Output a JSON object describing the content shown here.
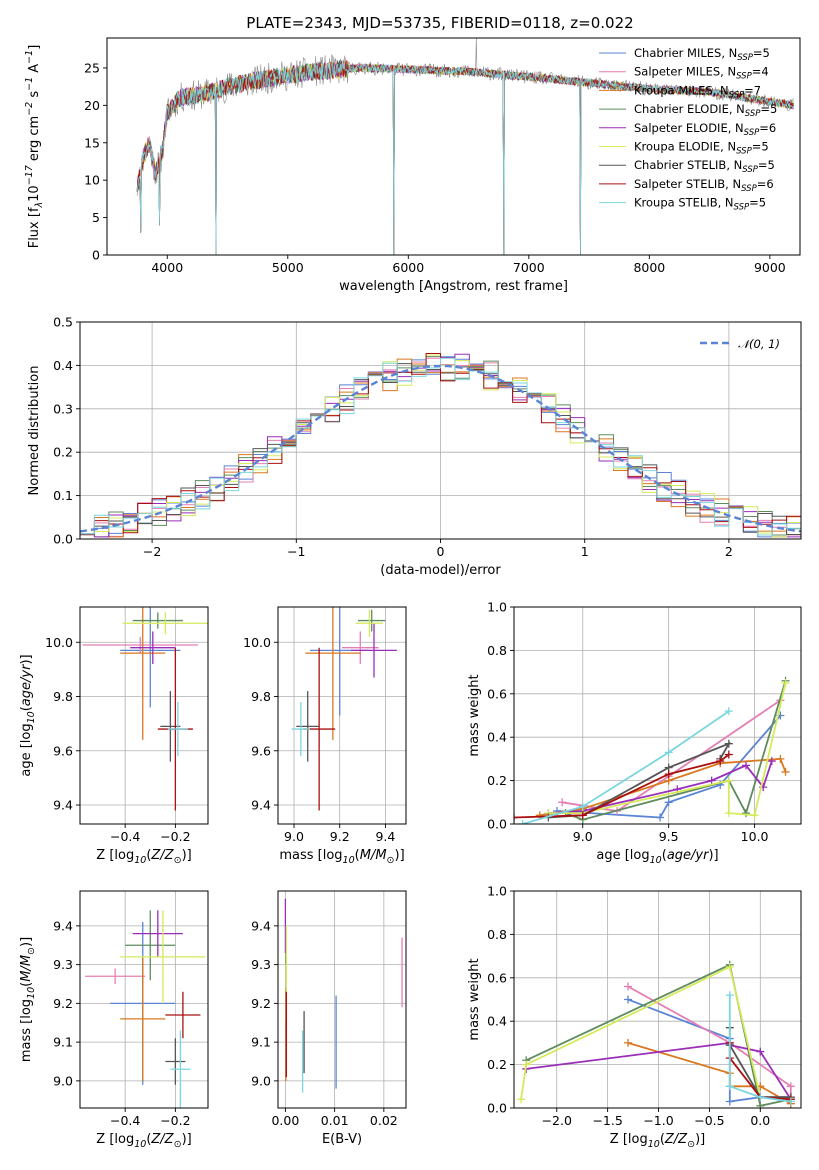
{
  "page": {
    "title": "PLATE=2343, MJD=53735, FIBERID=0118, z=0.022"
  },
  "colors": {
    "Chabrier MILES": "#5b84d6",
    "Salpeter MILES": "#e57fb3",
    "Kroupa MILES": "#d9781e",
    "Chabrier ELODIE": "#5e8c5e",
    "Salpeter ELODIE": "#9a2eb8",
    "Kroupa ELODIE": "#d4ea5a",
    "Chabrier STELIB": "#555555",
    "Salpeter STELIB": "#aa1010",
    "Kroupa STELIB": "#7ad6de"
  },
  "chart_data": [
    {
      "id": "spectrum",
      "type": "line",
      "title": "PLATE=2343, MJD=53735, FIBERID=0118, z=0.022",
      "xlabel": "wavelength [Angstrom, rest frame]",
      "ylabel": "Flux [f$_\\lambda$10$^{-17}$ erg cm$^{-2}$ s$^{-1}$ A$^{-1}$]",
      "xlim": [
        3500,
        9250
      ],
      "ylim": [
        0,
        29
      ],
      "xticks": [
        4000,
        5000,
        6000,
        7000,
        8000,
        9000
      ],
      "yticks": [
        0,
        5,
        10,
        15,
        20,
        25
      ],
      "legend_position": "top-right",
      "legend": [
        {
          "model": "Chabrier MILES",
          "label": "Chabrier MILES, N",
          "sub": "SSP",
          "suffix": "=5"
        },
        {
          "model": "Salpeter MILES",
          "label": "Salpeter MILES, N",
          "sub": "SSP",
          "suffix": "=4"
        },
        {
          "model": "Kroupa MILES",
          "label": "Kroupa MILES, N",
          "sub": "SSP",
          "suffix": "=7"
        },
        {
          "model": "Chabrier ELODIE",
          "label": "Chabrier ELODIE, N",
          "sub": "SSP",
          "suffix": "=5"
        },
        {
          "model": "Salpeter ELODIE",
          "label": "Salpeter ELODIE, N",
          "sub": "SSP",
          "suffix": "=6"
        },
        {
          "model": "Kroupa ELODIE",
          "label": "Kroupa ELODIE, N",
          "sub": "SSP",
          "suffix": "=5"
        },
        {
          "model": "Chabrier STELIB",
          "label": "Chabrier STELIB, N",
          "sub": "SSP",
          "suffix": "=5"
        },
        {
          "model": "Salpeter STELIB",
          "label": "Salpeter STELIB, N",
          "sub": "SSP",
          "suffix": "=6"
        },
        {
          "model": "Kroupa STELIB",
          "label": "Kroupa STELIB, N",
          "sub": "SSP",
          "suffix": "=5"
        }
      ],
      "continuum": [
        [
          3750,
          9
        ],
        [
          3800,
          13
        ],
        [
          3850,
          15
        ],
        [
          3900,
          11
        ],
        [
          3950,
          13
        ],
        [
          4000,
          19
        ],
        [
          4100,
          21
        ],
        [
          4300,
          21.5
        ],
        [
          4500,
          22.5
        ],
        [
          4800,
          23.5
        ],
        [
          5200,
          24.5
        ],
        [
          5600,
          25
        ],
        [
          6000,
          24.8
        ],
        [
          6500,
          24.5
        ],
        [
          7000,
          23.8
        ],
        [
          7500,
          23
        ],
        [
          8000,
          22.2
        ],
        [
          8500,
          21.8
        ],
        [
          9000,
          20.5
        ],
        [
          9200,
          20
        ]
      ],
      "dips": [
        [
          3780,
          3
        ],
        [
          3935,
          4
        ],
        [
          4405,
          0
        ],
        [
          5880,
          0
        ],
        [
          6790,
          0
        ],
        [
          7430,
          0
        ]
      ],
      "peaks": [
        [
          6563,
          29
        ]
      ]
    },
    {
      "id": "residuals",
      "type": "histogram",
      "xlabel": "(data-model)/error",
      "ylabel": "Normed distribution",
      "xlim": [
        -2.5,
        2.5
      ],
      "ylim": [
        0,
        0.5
      ],
      "xticks": [
        -2,
        -1,
        0,
        1,
        2
      ],
      "yticks": [
        0.0,
        0.1,
        0.2,
        0.3,
        0.4,
        0.5
      ],
      "grid": true,
      "bin_width": 0.1,
      "bin_start": -2.5,
      "gaussian_label": "$\\mathcal{N}(0,1)$",
      "gaussian_color": "#5b84d6",
      "legend_position": "top-right"
    },
    {
      "id": "age_vs_Z",
      "type": "errorbar",
      "xlabel": "Z [log$_{10}$($Z/Z_\\odot$)]",
      "ylabel": "age  [log$_{10}$($age/yr$)]",
      "xlim": [
        -0.58,
        -0.07
      ],
      "ylim": [
        9.33,
        10.13
      ],
      "xticks": [
        -0.4,
        -0.2
      ],
      "yticks": [
        9.4,
        9.6,
        9.8,
        10.0
      ],
      "grid": true,
      "points": [
        {
          "model": "Chabrier MILES",
          "x": -0.3,
          "y": 9.97,
          "xerr": 0.12,
          "yerr": 0.21
        },
        {
          "model": "Salpeter MILES",
          "x": -0.34,
          "y": 9.99,
          "xerr": 0.23,
          "yerr": 0.03
        },
        {
          "model": "Kroupa MILES",
          "x": -0.33,
          "y": 9.96,
          "xerr": 0.09,
          "yerr": 0.32
        },
        {
          "model": "Chabrier ELODIE",
          "x": -0.27,
          "y": 10.08,
          "xerr": 0.1,
          "yerr": 0.03
        },
        {
          "model": "Salpeter ELODIE",
          "x": -0.29,
          "y": 9.98,
          "xerr": 0.09,
          "yerr": 0.06
        },
        {
          "model": "Kroupa ELODIE",
          "x": -0.24,
          "y": 10.07,
          "xerr": 0.17,
          "yerr": 0.04
        },
        {
          "model": "Chabrier STELIB",
          "x": -0.22,
          "y": 9.69,
          "xerr": 0.04,
          "yerr": 0.13
        },
        {
          "model": "Salpeter STELIB",
          "x": -0.2,
          "y": 9.68,
          "xerr": 0.07,
          "yerr": 0.3
        },
        {
          "model": "Kroupa STELIB",
          "x": -0.19,
          "y": 9.68,
          "xerr": 0.04,
          "yerr": 0.1
        }
      ]
    },
    {
      "id": "age_vs_mass",
      "type": "errorbar",
      "xlabel": "mass [log$_{10}$($M/M_\\odot$)]",
      "ylabel": "",
      "xlim": [
        8.93,
        9.49
      ],
      "ylim": [
        9.33,
        10.13
      ],
      "xticks": [
        9.0,
        9.2,
        9.4
      ],
      "yticks": [
        9.4,
        9.6,
        9.8,
        10.0
      ],
      "grid": true,
      "points": [
        {
          "model": "Chabrier MILES",
          "x": 9.2,
          "y": 9.97,
          "xerr": 0.13,
          "yerr": 0.24
        },
        {
          "model": "Salpeter MILES",
          "x": 9.29,
          "y": 9.98,
          "xerr": 0.08,
          "yerr": 0.06
        },
        {
          "model": "Kroupa MILES",
          "x": 9.17,
          "y": 9.96,
          "xerr": 0.12,
          "yerr": 0.32
        },
        {
          "model": "Chabrier ELODIE",
          "x": 9.34,
          "y": 10.08,
          "xerr": 0.06,
          "yerr": 0.04
        },
        {
          "model": "Salpeter ELODIE",
          "x": 9.35,
          "y": 9.97,
          "xerr": 0.1,
          "yerr": 0.1
        },
        {
          "model": "Kroupa ELODIE",
          "x": 9.33,
          "y": 10.07,
          "xerr": 0.06,
          "yerr": 0.05
        },
        {
          "model": "Chabrier STELIB",
          "x": 9.06,
          "y": 9.69,
          "xerr": 0.05,
          "yerr": 0.13
        },
        {
          "model": "Salpeter STELIB",
          "x": 9.11,
          "y": 9.68,
          "xerr": 0.07,
          "yerr": 0.3
        },
        {
          "model": "Kroupa STELIB",
          "x": 9.03,
          "y": 9.68,
          "xerr": 0.04,
          "yerr": 0.1
        }
      ]
    },
    {
      "id": "massweight_vs_age",
      "type": "line",
      "xlabel": "age  [log$_{10}$($age/yr$)]",
      "ylabel": "mass weight",
      "xlim": [
        8.6,
        10.27
      ],
      "ylim": [
        0,
        1
      ],
      "xticks": [
        9.0,
        9.5,
        10.0
      ],
      "yticks": [
        0.0,
        0.2,
        0.4,
        0.6,
        0.8,
        1.0
      ],
      "grid": true,
      "series": [
        {
          "model": "Chabrier MILES",
          "x": [
            8.85,
            9.45,
            9.5,
            9.8,
            10.15
          ],
          "y": [
            0.06,
            0.03,
            0.1,
            0.18,
            0.5
          ]
        },
        {
          "model": "Salpeter MILES",
          "x": [
            8.88,
            9.2,
            9.5,
            10.15
          ],
          "y": [
            0.1,
            0.06,
            0.22,
            0.57
          ]
        },
        {
          "model": "Kroupa MILES",
          "x": [
            8.75,
            9.0,
            9.5,
            9.8,
            10.15,
            10.18
          ],
          "y": [
            0.04,
            0.07,
            0.2,
            0.28,
            0.3,
            0.24
          ]
        },
        {
          "model": "Chabrier ELODIE",
          "x": [
            8.9,
            9.0,
            9.85,
            9.95,
            10.18
          ],
          "y": [
            0.05,
            0.02,
            0.2,
            0.05,
            0.66
          ]
        },
        {
          "model": "Salpeter ELODIE",
          "x": [
            8.8,
            9.0,
            9.55,
            9.75,
            9.95,
            10.05,
            10.1
          ],
          "y": [
            0.05,
            0.06,
            0.16,
            0.2,
            0.27,
            0.17,
            0.29
          ]
        },
        {
          "model": "Kroupa ELODIE",
          "x": [
            8.8,
            9.0,
            9.85,
            9.85,
            10.0,
            10.18
          ],
          "y": [
            0.05,
            0.05,
            0.2,
            0.05,
            0.04,
            0.65
          ]
        },
        {
          "model": "Chabrier STELIB",
          "x": [
            8.8,
            9.0,
            9.5,
            9.85,
            9.8
          ],
          "y": [
            0.03,
            0.04,
            0.26,
            0.37,
            0.3
          ]
        },
        {
          "model": "Salpeter STELIB",
          "x": [
            8.6,
            9.0,
            9.5,
            9.8,
            9.85
          ],
          "y": [
            0.03,
            0.04,
            0.23,
            0.29,
            0.32
          ]
        },
        {
          "model": "Kroupa STELIB",
          "x": [
            8.65,
            9.0,
            9.5,
            9.85
          ],
          "y": [
            0.0,
            0.08,
            0.33,
            0.52
          ]
        }
      ]
    },
    {
      "id": "mass_vs_Z",
      "type": "errorbar",
      "xlabel": "Z [log$_{10}$($Z/Z_\\odot$)]",
      "ylabel": "mass [log$_{10}$($M/M_\\odot$)]",
      "xlim": [
        -0.58,
        -0.07
      ],
      "ylim": [
        8.93,
        9.49
      ],
      "xticks": [
        -0.4,
        -0.2
      ],
      "yticks": [
        9.0,
        9.1,
        9.2,
        9.3,
        9.4
      ],
      "grid": true,
      "points": [
        {
          "model": "Chabrier MILES",
          "x": -0.33,
          "y": 9.2,
          "xerr": 0.13,
          "yerr": 0.21
        },
        {
          "model": "Salpeter MILES",
          "x": -0.44,
          "y": 9.27,
          "xerr": 0.12,
          "yerr": 0.02
        },
        {
          "model": "Kroupa MILES",
          "x": -0.33,
          "y": 9.16,
          "xerr": 0.09,
          "yerr": 0.16
        },
        {
          "model": "Chabrier ELODIE",
          "x": -0.3,
          "y": 9.35,
          "xerr": 0.1,
          "yerr": 0.09
        },
        {
          "model": "Salpeter ELODIE",
          "x": -0.27,
          "y": 9.38,
          "xerr": 0.1,
          "yerr": 0.06
        },
        {
          "model": "Kroupa ELODIE",
          "x": -0.25,
          "y": 9.32,
          "xerr": 0.17,
          "yerr": 0.12
        },
        {
          "model": "Chabrier STELIB",
          "x": -0.2,
          "y": 9.05,
          "xerr": 0.04,
          "yerr": 0.06
        },
        {
          "model": "Salpeter STELIB",
          "x": -0.17,
          "y": 9.17,
          "xerr": 0.07,
          "yerr": 0.06
        },
        {
          "model": "Kroupa STELIB",
          "x": -0.18,
          "y": 9.03,
          "xerr": 0.04,
          "yerr": 0.1
        }
      ]
    },
    {
      "id": "mass_vs_EBV",
      "type": "errorbar",
      "xlabel": "E(B-V)",
      "ylabel": "",
      "xlim": [
        -0.0015,
        0.0245
      ],
      "ylim": [
        8.93,
        9.49
      ],
      "xticks": [
        0.0,
        0.01,
        0.02
      ],
      "yticks": [
        9.0,
        9.1,
        9.2,
        9.3,
        9.4
      ],
      "grid": true,
      "points": [
        {
          "model": "Chabrier MILES",
          "x": 0.0103,
          "y": 9.1,
          "xerr": 0,
          "yerr": 0.12
        },
        {
          "model": "Salpeter MILES",
          "x": 0.0237,
          "y": 9.28,
          "xerr": 0,
          "yerr": 0.09
        },
        {
          "model": "Kroupa MILES",
          "x": 0.0001,
          "y": 9.12,
          "xerr": 0,
          "yerr": 0.12
        },
        {
          "model": "Chabrier ELODIE",
          "x": 0.0001,
          "y": 9.35,
          "xerr": 0,
          "yerr": 0.05
        },
        {
          "model": "Salpeter ELODIE",
          "x": 0.0,
          "y": 9.4,
          "xerr": 0,
          "yerr": 0.07
        },
        {
          "model": "Kroupa ELODIE",
          "x": 0.0002,
          "y": 9.28,
          "xerr": 0,
          "yerr": 0.12
        },
        {
          "model": "Chabrier STELIB",
          "x": 0.0038,
          "y": 9.1,
          "xerr": 0,
          "yerr": 0.08
        },
        {
          "model": "Salpeter STELIB",
          "x": 0.0002,
          "y": 9.12,
          "xerr": 0,
          "yerr": 0.11
        },
        {
          "model": "Kroupa STELIB",
          "x": 0.0035,
          "y": 9.05,
          "xerr": 0,
          "yerr": 0.08
        }
      ]
    },
    {
      "id": "massweight_vs_Z",
      "type": "line",
      "xlabel": "Z [log$_{10}$($Z/Z_\\odot$)]",
      "ylabel": "mass weight",
      "xlim": [
        -2.42,
        0.4
      ],
      "ylim": [
        0,
        1
      ],
      "xticks": [
        -2.0,
        -1.5,
        -1.0,
        -0.5,
        0.0
      ],
      "yticks": [
        0.0,
        0.2,
        0.4,
        0.6,
        0.8,
        1.0
      ],
      "grid": true,
      "series": [
        {
          "model": "Chabrier MILES",
          "x": [
            -1.3,
            -0.3,
            -0.3,
            0.0,
            0.3
          ],
          "y": [
            0.5,
            0.32,
            0.03,
            0.05,
            0.05
          ]
        },
        {
          "model": "Salpeter MILES",
          "x": [
            -1.3,
            -0.3,
            0.3,
            0.3
          ],
          "y": [
            0.56,
            0.3,
            0.1,
            0.02
          ]
        },
        {
          "model": "Kroupa MILES",
          "x": [
            -1.3,
            -0.3,
            -0.3,
            0.0,
            0.3
          ],
          "y": [
            0.3,
            0.16,
            0.1,
            0.1,
            0.02
          ]
        },
        {
          "model": "Chabrier ELODIE",
          "x": [
            -2.3,
            -0.3,
            0.0,
            0.3
          ],
          "y": [
            0.22,
            0.66,
            0.01,
            0.04
          ]
        },
        {
          "model": "Salpeter ELODIE",
          "x": [
            -2.3,
            -0.3,
            -0.3,
            0.0,
            0.3
          ],
          "y": [
            0.18,
            0.3,
            0.29,
            0.26,
            0.04
          ]
        },
        {
          "model": "Kroupa ELODIE",
          "x": [
            -2.35,
            -2.3,
            -0.3,
            0.0,
            0.3
          ],
          "y": [
            0.04,
            0.2,
            0.65,
            0.05,
            0.04
          ]
        },
        {
          "model": "Chabrier STELIB",
          "x": [
            -0.3,
            -0.3,
            0.0,
            0.3
          ],
          "y": [
            0.37,
            0.29,
            0.05,
            0.05
          ]
        },
        {
          "model": "Salpeter STELIB",
          "x": [
            -0.3,
            -0.3,
            0.0,
            0.3
          ],
          "y": [
            0.3,
            0.23,
            0.05,
            0.04
          ]
        },
        {
          "model": "Kroupa STELIB",
          "x": [
            -0.3,
            -0.3,
            0.0,
            0.3
          ],
          "y": [
            0.52,
            0.1,
            0.05,
            0.03
          ]
        }
      ]
    }
  ]
}
